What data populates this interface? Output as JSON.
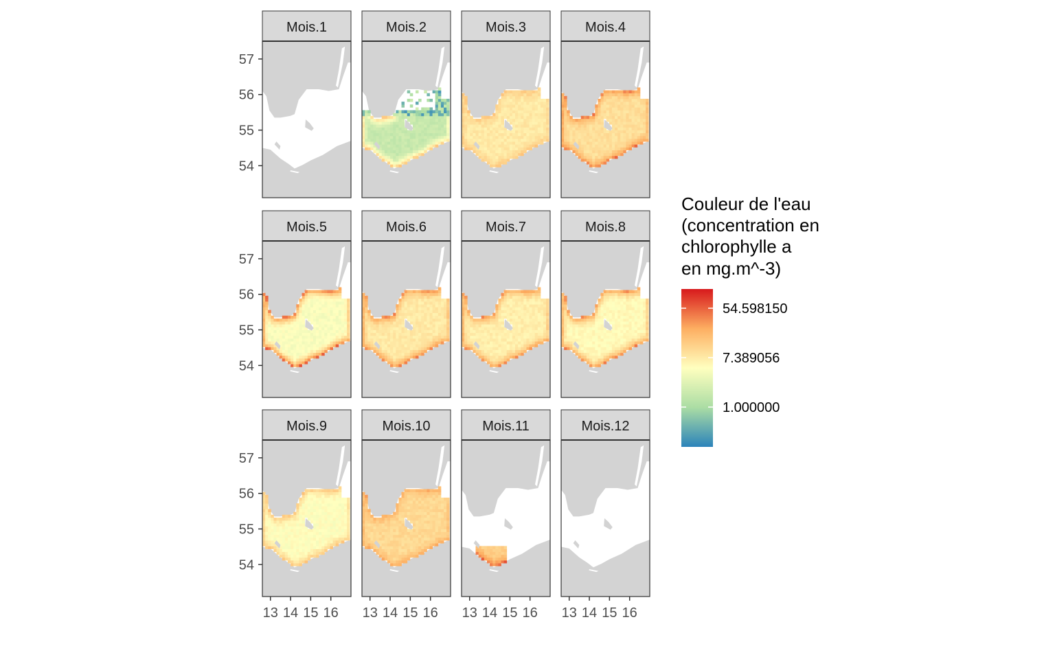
{
  "chart_data": {
    "type": "heatmap",
    "subtype": "faceted raster map",
    "facets": [
      "Mois.1",
      "Mois.2",
      "Mois.3",
      "Mois.4",
      "Mois.5",
      "Mois.6",
      "Mois.7",
      "Mois.8",
      "Mois.9",
      "Mois.10",
      "Mois.11",
      "Mois.12"
    ],
    "facet_layout": {
      "rows": 3,
      "cols": 4
    },
    "x_ticks": [
      "13",
      "14",
      "15",
      "16"
    ],
    "y_ticks": [
      "57",
      "56",
      "55",
      "54"
    ],
    "xlim": [
      12.6,
      17.0
    ],
    "ylim": [
      53.1,
      57.5
    ],
    "legend": {
      "title_lines": [
        "Couleur de l'eau",
        "(concentration en",
        "chlorophylle a",
        "en mg.m^-3)"
      ],
      "breaks": [
        "54.598150",
        "7.389056",
        "1.000000"
      ],
      "scale": "log",
      "palette": [
        "#2b83ba",
        "#abdda4",
        "#ffffbf",
        "#fdae61",
        "#d7191c"
      ],
      "placement": "right"
    },
    "colors": {
      "land": "#d3d3d3",
      "no_data_sea": "#ffffff",
      "panel_border": "#333333",
      "strip_fill": "#d9d9d9"
    },
    "series": [
      {
        "facet": "Mois.1",
        "coverage": "none",
        "typical_log_value": null,
        "coastal_log_value": null
      },
      {
        "facet": "Mois.2",
        "coverage": "partial",
        "typical_log_value": 0.5,
        "coastal_log_value": 2.6
      },
      {
        "facet": "Mois.3",
        "coverage": "full",
        "typical_log_value": 1.9,
        "coastal_log_value": 2.5
      },
      {
        "facet": "Mois.4",
        "coverage": "full",
        "typical_log_value": 2.1,
        "coastal_log_value": 3.4
      },
      {
        "facet": "Mois.5",
        "coverage": "full",
        "typical_log_value": 1.4,
        "coastal_log_value": 3.6
      },
      {
        "facet": "Mois.6",
        "coverage": "full",
        "typical_log_value": 1.9,
        "coastal_log_value": 3.3
      },
      {
        "facet": "Mois.7",
        "coverage": "full",
        "typical_log_value": 1.8,
        "coastal_log_value": 3.2
      },
      {
        "facet": "Mois.8",
        "coverage": "full",
        "typical_log_value": 1.6,
        "coastal_log_value": 3.3
      },
      {
        "facet": "Mois.9",
        "coverage": "full",
        "typical_log_value": 1.5,
        "coastal_log_value": 2.6
      },
      {
        "facet": "Mois.10",
        "coverage": "full",
        "typical_log_value": 2.2,
        "coastal_log_value": 3.0
      },
      {
        "facet": "Mois.11",
        "coverage": "small",
        "typical_log_value": 2.4,
        "coastal_log_value": 3.6
      },
      {
        "facet": "Mois.12",
        "coverage": "none",
        "typical_log_value": null,
        "coastal_log_value": null
      }
    ]
  }
}
